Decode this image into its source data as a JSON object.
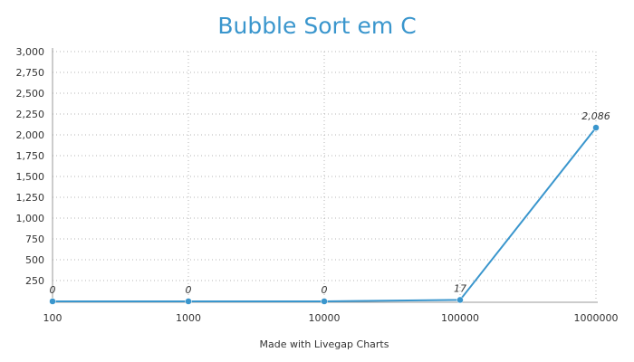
{
  "chart_data": {
    "type": "line",
    "title": "Bubble Sort em C",
    "xlabel": "",
    "ylabel": "",
    "categories": [
      "100",
      "1000",
      "10000",
      "100000",
      "1000000"
    ],
    "values": [
      0,
      0,
      0,
      17,
      2086
    ],
    "data_labels": [
      "0",
      "0",
      "0",
      "17",
      "2,086"
    ],
    "ylim": [
      0,
      3000
    ],
    "y_ticks": [
      250,
      500,
      750,
      1000,
      1250,
      1500,
      1750,
      2000,
      2250,
      2500,
      2750,
      3000
    ],
    "y_tick_labels": [
      "250",
      "500",
      "750",
      "1,000",
      "1,250",
      "1,500",
      "1,750",
      "2,000",
      "2,250",
      "2,500",
      "2,750",
      "3,000"
    ],
    "grid": true,
    "legend": "none",
    "series_color": "#3a96cd"
  },
  "credit": "Made with Livegap Charts"
}
